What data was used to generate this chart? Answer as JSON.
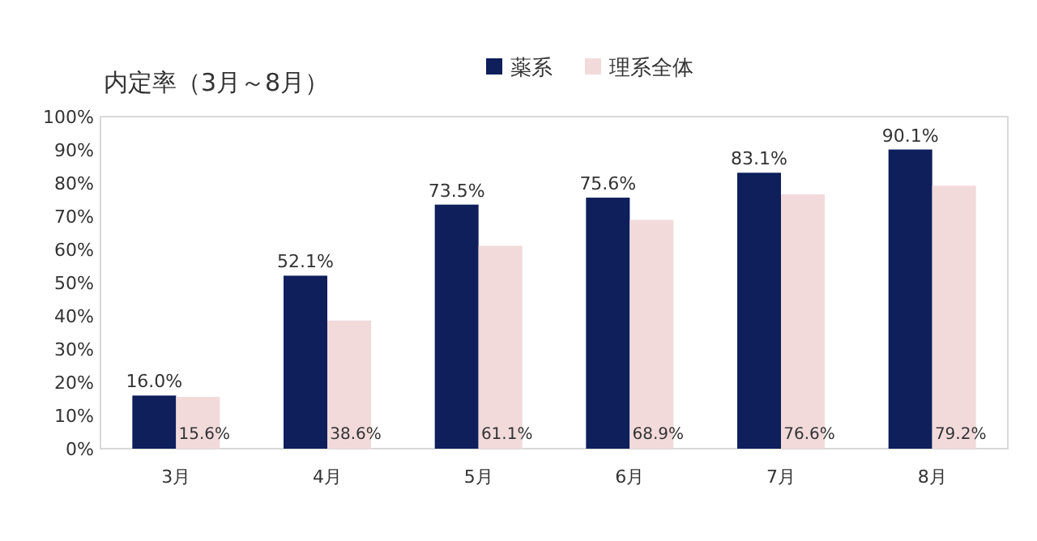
{
  "chart_data": {
    "type": "bar",
    "title": "内定率（3月～8月）",
    "categories": [
      "3月",
      "4月",
      "5月",
      "6月",
      "7月",
      "8月"
    ],
    "series": [
      {
        "name": "薬系",
        "color": "#0e1f5b",
        "values": [
          16.0,
          52.1,
          73.5,
          75.6,
          83.1,
          90.1
        ],
        "value_labels": [
          "16.0%",
          "52.1%",
          "73.5%",
          "75.6%",
          "83.1%",
          "90.1%"
        ]
      },
      {
        "name": "理系全体",
        "color": "#f2dadb",
        "values": [
          15.6,
          38.6,
          61.1,
          68.9,
          76.6,
          79.2
        ],
        "value_labels": [
          "15.6%",
          "38.6%",
          "61.1%",
          "68.9%",
          "76.6%",
          "79.2%"
        ]
      }
    ],
    "ylim": [
      0,
      100
    ],
    "yticks": [
      {
        "value": 0,
        "label": "0%"
      },
      {
        "value": 10,
        "label": "10%"
      },
      {
        "value": 20,
        "label": "20%"
      },
      {
        "value": 30,
        "label": "30%"
      },
      {
        "value": 40,
        "label": "40%"
      },
      {
        "value": 50,
        "label": "50%"
      },
      {
        "value": 60,
        "label": "60%"
      },
      {
        "value": 70,
        "label": "70%"
      },
      {
        "value": 80,
        "label": "80%"
      },
      {
        "value": 90,
        "label": "90%"
      },
      {
        "value": 100,
        "label": "100%"
      }
    ],
    "legend": "top right"
  }
}
